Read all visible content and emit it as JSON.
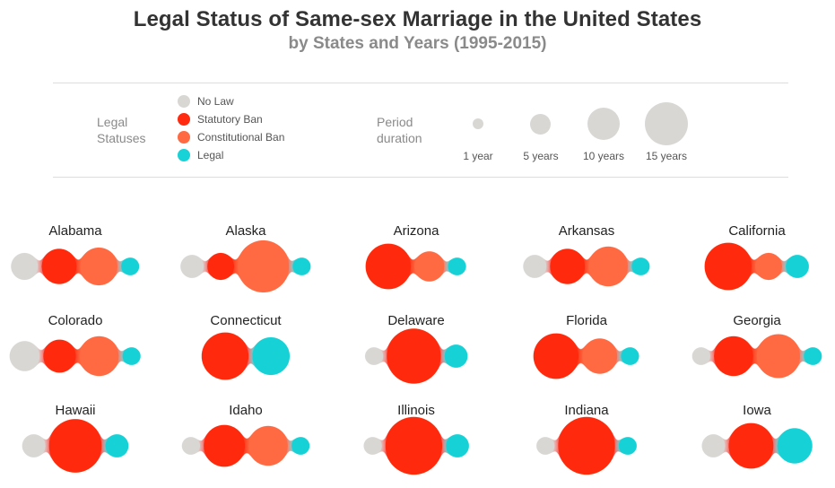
{
  "title": "Legal Status of Same-sex Marriage in the United States",
  "subtitle": "by States and Years (1995-2015)",
  "legend": {
    "status_heading": [
      "Legal",
      "Statuses"
    ],
    "statuses": [
      {
        "label": "No Law",
        "color": "#d9d7d4"
      },
      {
        "label": "Statutory Ban",
        "color": "#ff2a0f"
      },
      {
        "label": "Constitutional Ban",
        "color": "#ff6a42"
      },
      {
        "label": "Legal",
        "color": "#17d2d6"
      }
    ],
    "duration_heading": [
      "Period",
      "duration"
    ],
    "durations": [
      {
        "label": "1 year",
        "years": 1
      },
      {
        "label": "5 years",
        "years": 5
      },
      {
        "label": "10 years",
        "years": 10
      },
      {
        "label": "15 years",
        "years": 15
      }
    ]
  },
  "chart_data": {
    "type": "bubble-chain",
    "unit": "years",
    "period": [
      1995,
      2015
    ],
    "states": [
      {
        "name": "Alabama",
        "segments": [
          [
            "No Law",
            3
          ],
          [
            "Statutory Ban",
            6
          ],
          [
            "Constitutional Ban",
            7
          ],
          [
            "Legal",
            1
          ]
        ]
      },
      {
        "name": "Alaska",
        "segments": [
          [
            "No Law",
            2
          ],
          [
            "Statutory Ban",
            3
          ],
          [
            "Constitutional Ban",
            15
          ],
          [
            "Legal",
            1
          ]
        ]
      },
      {
        "name": "Arizona",
        "segments": [
          [
            "Statutory Ban",
            11
          ],
          [
            "Constitutional Ban",
            4
          ],
          [
            "Legal",
            1
          ]
        ]
      },
      {
        "name": "Arkansas",
        "segments": [
          [
            "No Law",
            2
          ],
          [
            "Statutory Ban",
            6
          ],
          [
            "Constitutional Ban",
            8
          ],
          [
            "Legal",
            1
          ]
        ]
      },
      {
        "name": "California",
        "segments": [
          [
            "Statutory Ban",
            12
          ],
          [
            "Constitutional Ban",
            3
          ],
          [
            "Legal",
            2
          ]
        ]
      },
      {
        "name": "Colorado",
        "segments": [
          [
            "No Law",
            4
          ],
          [
            "Statutory Ban",
            5
          ],
          [
            "Constitutional Ban",
            8
          ],
          [
            "Legal",
            1
          ]
        ]
      },
      {
        "name": "Connecticut",
        "segments": [
          [
            "Statutory Ban",
            12
          ],
          [
            "Legal",
            7
          ]
        ]
      },
      {
        "name": "Delaware",
        "segments": [
          [
            "No Law",
            1
          ],
          [
            "Statutory Ban",
            17
          ],
          [
            "Legal",
            2
          ]
        ]
      },
      {
        "name": "Florida",
        "segments": [
          [
            "Statutory Ban",
            11
          ],
          [
            "Constitutional Ban",
            6
          ],
          [
            "Legal",
            1
          ]
        ]
      },
      {
        "name": "Georgia",
        "segments": [
          [
            "No Law",
            1
          ],
          [
            "Statutory Ban",
            8
          ],
          [
            "Constitutional Ban",
            10
          ],
          [
            "Legal",
            1
          ]
        ]
      },
      {
        "name": "Hawaii",
        "segments": [
          [
            "No Law",
            2
          ],
          [
            "Statutory Ban",
            16
          ],
          [
            "Legal",
            2
          ]
        ]
      },
      {
        "name": "Idaho",
        "segments": [
          [
            "No Law",
            1
          ],
          [
            "Statutory Ban",
            9
          ],
          [
            "Constitutional Ban",
            8
          ],
          [
            "Legal",
            1
          ]
        ]
      },
      {
        "name": "Illinois",
        "segments": [
          [
            "No Law",
            1
          ],
          [
            "Statutory Ban",
            19
          ],
          [
            "Legal",
            2
          ]
        ]
      },
      {
        "name": "Indiana",
        "segments": [
          [
            "No Law",
            1
          ],
          [
            "Statutory Ban",
            19
          ],
          [
            "Legal",
            1
          ]
        ]
      },
      {
        "name": "Iowa",
        "segments": [
          [
            "No Law",
            2
          ],
          [
            "Statutory Ban",
            11
          ],
          [
            "Legal",
            6
          ]
        ]
      }
    ]
  }
}
